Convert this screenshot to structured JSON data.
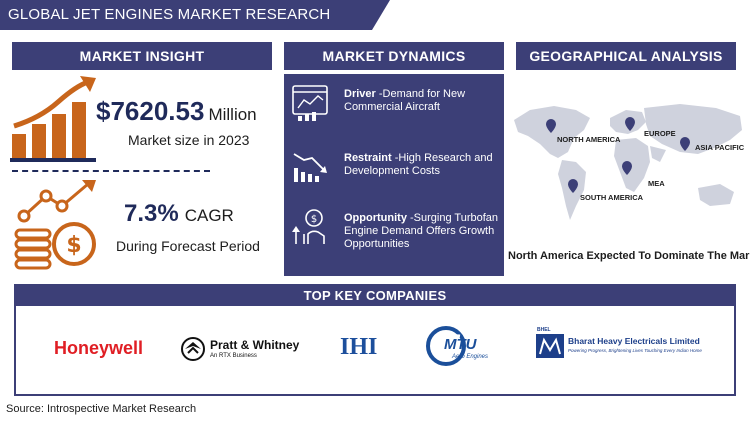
{
  "title": "GLOBAL JET ENGINES MARKET RESEARCH REPORT",
  "sections": {
    "insight": "MARKET INSIGHT",
    "dynamics": "MARKET DYNAMICS",
    "geo": "GEOGRAPHICAL ANALYSIS",
    "companies": "TOP KEY COMPANIES"
  },
  "insight": {
    "market_value": "$7620.53",
    "market_unit": "Million",
    "market_caption": "Market size in 2023",
    "cagr_value": "7.3%",
    "cagr_unit": "CAGR",
    "cagr_caption": "During Forecast Period"
  },
  "dynamics": [
    {
      "label": "Driver",
      "text": " -Demand for New Commercial Aircraft"
    },
    {
      "label": "Restraint",
      "text": " -High Research and Development Costs"
    },
    {
      "label": "Opportunity",
      "text": " -Surging Turbofan Engine Demand Offers Growth Opportunities"
    }
  ],
  "geo": {
    "regions": [
      "NORTH AMERICA",
      "EUROPE",
      "ASIA PACIFIC",
      "MEA",
      "SOUTH AMERICA"
    ],
    "footer": "North America Expected To Dominate The Market"
  },
  "companies": {
    "honeywell": "Honeywell",
    "pw_main": "Pratt & Whitney",
    "pw_sub": "An RTX Business",
    "ihi": "IHI",
    "mtu_main": "MTU",
    "mtu_sub": "Aero Engines",
    "bhel_main": "Bharat Heavy Electricals Limited",
    "bhel_sub": "Powering Progress, Brightening Lives Touching Every Indian Home",
    "bhel_mark": "BHEL"
  },
  "source": "Source: Introspective Market Research",
  "colors": {
    "navy": "#3c3f77",
    "orange": "#c8651b",
    "honeywell_red": "#e01e24",
    "ihi_blue": "#1d4f9c",
    "mtu_blue": "#1b4f9a"
  }
}
